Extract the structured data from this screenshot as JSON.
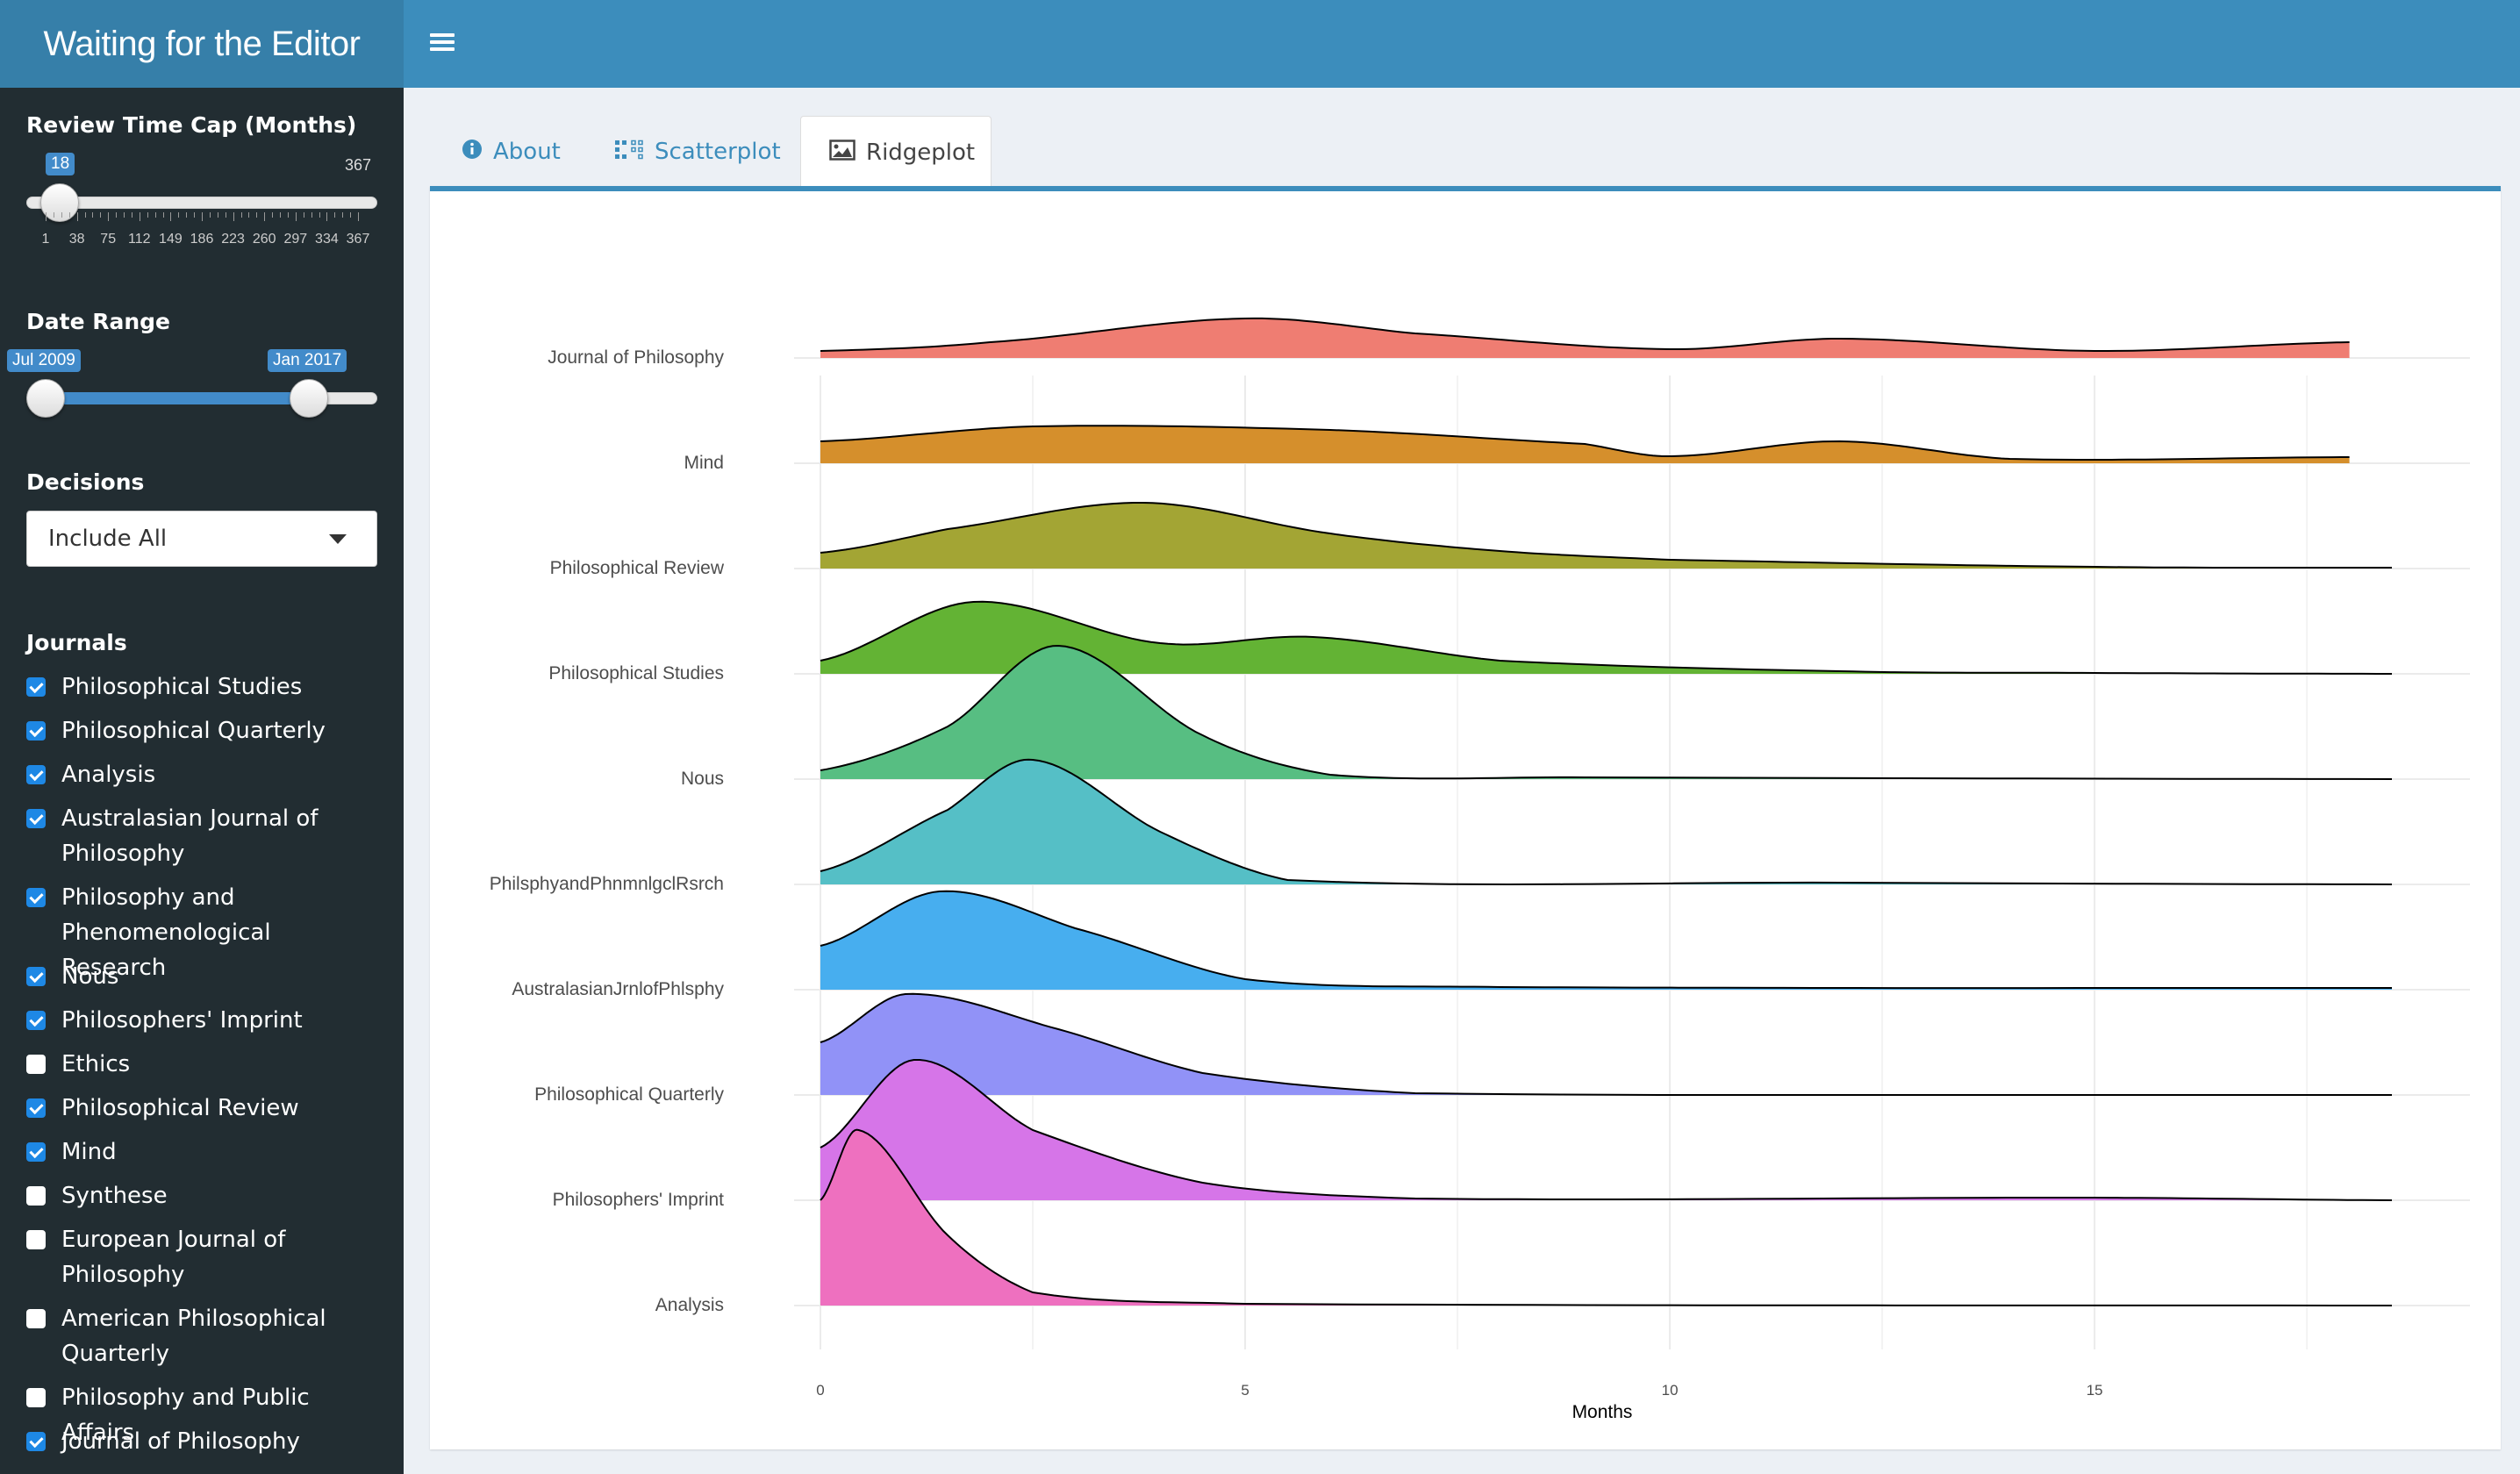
{
  "app": {
    "title": "Waiting for the Editor"
  },
  "sidebar": {
    "review_cap": {
      "label": "Review Time Cap (Months)",
      "value": "18",
      "max_label": "367",
      "min": 1,
      "max": 367,
      "current": 18,
      "ticks": [
        "1",
        "38",
        "75",
        "112",
        "149",
        "186",
        "223",
        "260",
        "297",
        "334",
        "367"
      ]
    },
    "date_range": {
      "label": "Date Range",
      "from": "Jul 2009",
      "to": "Jan 2017",
      "from_fraction": 0.05,
      "to_fraction": 0.8
    },
    "decisions": {
      "label": "Decisions",
      "selected": "Include All"
    },
    "journals": {
      "label": "Journals",
      "items": [
        {
          "label": "Philosophical Studies",
          "checked": true
        },
        {
          "label": "Philosophical Quarterly",
          "checked": true
        },
        {
          "label": "Analysis",
          "checked": true
        },
        {
          "label": "Australasian Journal of Philosophy",
          "checked": true
        },
        {
          "label": "Philosophy and Phenomenological Research",
          "checked": true
        },
        {
          "label": "Nous",
          "checked": true
        },
        {
          "label": "Philosophers' Imprint",
          "checked": true
        },
        {
          "label": "Ethics",
          "checked": false
        },
        {
          "label": "Philosophical Review",
          "checked": true
        },
        {
          "label": "Mind",
          "checked": true
        },
        {
          "label": "Synthese",
          "checked": false
        },
        {
          "label": "European Journal of Philosophy",
          "checked": false
        },
        {
          "label": "American Philosophical Quarterly",
          "checked": false
        },
        {
          "label": "Philosophy and Public Affairs",
          "checked": false
        },
        {
          "label": "Journal of Philosophy",
          "checked": true
        }
      ]
    }
  },
  "tabs": [
    {
      "label": "About",
      "icon": "info-circle-icon",
      "active": false
    },
    {
      "label": "Scatterplot",
      "icon": "grid-dots-icon",
      "active": false
    },
    {
      "label": "Ridgeplot",
      "icon": "image-icon",
      "active": true
    }
  ],
  "chart_data": {
    "type": "area",
    "subtype": "ridgeline",
    "xlabel": "Months",
    "ylabel": "",
    "xlim": [
      0,
      18.5
    ],
    "x_ticks": [
      0,
      5,
      10,
      15
    ],
    "grid": true,
    "series": [
      {
        "name": "Journal of Philosophy",
        "color": "#ef7d72",
        "peaks": [
          [
            0,
            0.08
          ],
          [
            2,
            0.18
          ],
          [
            5,
            0.45
          ],
          [
            7,
            0.28
          ],
          [
            10,
            0.1
          ],
          [
            12,
            0.22
          ],
          [
            15,
            0.08
          ],
          [
            18,
            0.18
          ]
        ]
      },
      {
        "name": "Mind",
        "color": "#d58f2c",
        "peaks": [
          [
            0,
            0.25
          ],
          [
            2.5,
            0.42
          ],
          [
            6,
            0.38
          ],
          [
            9,
            0.22
          ],
          [
            10,
            0.08
          ],
          [
            12,
            0.25
          ],
          [
            14,
            0.05
          ],
          [
            18,
            0.07
          ]
        ]
      },
      {
        "name": "Philosophical Review",
        "color": "#a3a534",
        "peaks": [
          [
            0,
            0.18
          ],
          [
            1.5,
            0.45
          ],
          [
            3.8,
            0.75
          ],
          [
            6,
            0.4
          ],
          [
            8,
            0.2
          ],
          [
            10,
            0.1
          ],
          [
            15,
            0.02
          ],
          [
            18.5,
            0.01
          ]
        ]
      },
      {
        "name": "Philosophical Studies",
        "color": "#63b334",
        "peaks": [
          [
            0,
            0.15
          ],
          [
            1.8,
            0.82
          ],
          [
            4,
            0.35
          ],
          [
            5.8,
            0.42
          ],
          [
            8,
            0.15
          ],
          [
            12,
            0.03
          ],
          [
            15,
            0.01
          ],
          [
            18.5,
            0.0
          ]
        ]
      },
      {
        "name": "Nous",
        "color": "#57be82",
        "peaks": [
          [
            0,
            0.1
          ],
          [
            1.5,
            0.6
          ],
          [
            2.8,
            1.52
          ],
          [
            4.5,
            0.5
          ],
          [
            6,
            0.05
          ],
          [
            9,
            0.02
          ],
          [
            18.5,
            0.0
          ]
        ]
      },
      {
        "name": "PhilsphyandPhnmnlgclRsrch",
        "color": "#55bfc6",
        "peaks": [
          [
            0,
            0.15
          ],
          [
            1.5,
            0.85
          ],
          [
            2.5,
            1.42
          ],
          [
            4,
            0.6
          ],
          [
            5.5,
            0.05
          ],
          [
            12,
            0.02
          ],
          [
            18.5,
            0.0
          ]
        ]
      },
      {
        "name": "AustralasianJrnlofPhlsphy",
        "color": "#47aeef",
        "peaks": [
          [
            0,
            0.5
          ],
          [
            1.4,
            1.12
          ],
          [
            3,
            0.7
          ],
          [
            5,
            0.12
          ],
          [
            8,
            0.03
          ],
          [
            18.5,
            0.02
          ]
        ]
      },
      {
        "name": "Philosophical Quarterly",
        "color": "#9192f7",
        "peaks": [
          [
            0,
            0.6
          ],
          [
            1,
            1.15
          ],
          [
            2.8,
            0.75
          ],
          [
            4.5,
            0.25
          ],
          [
            7,
            0.02
          ],
          [
            18.5,
            0.0
          ]
        ]
      },
      {
        "name": "Philosophers' Imprint",
        "color": "#d675e8",
        "peaks": [
          [
            0,
            0.6
          ],
          [
            1.1,
            1.6
          ],
          [
            2.5,
            0.8
          ],
          [
            4.5,
            0.2
          ],
          [
            7,
            0.02
          ],
          [
            15,
            0.03
          ],
          [
            18.5,
            0.0
          ]
        ]
      },
      {
        "name": "Analysis",
        "color": "#ee70bf",
        "peaks": [
          [
            0,
            1.2
          ],
          [
            0.45,
            2.0
          ],
          [
            1.5,
            0.8
          ],
          [
            2.5,
            0.15
          ],
          [
            5,
            0.02
          ],
          [
            18.5,
            0.0
          ]
        ]
      }
    ]
  }
}
